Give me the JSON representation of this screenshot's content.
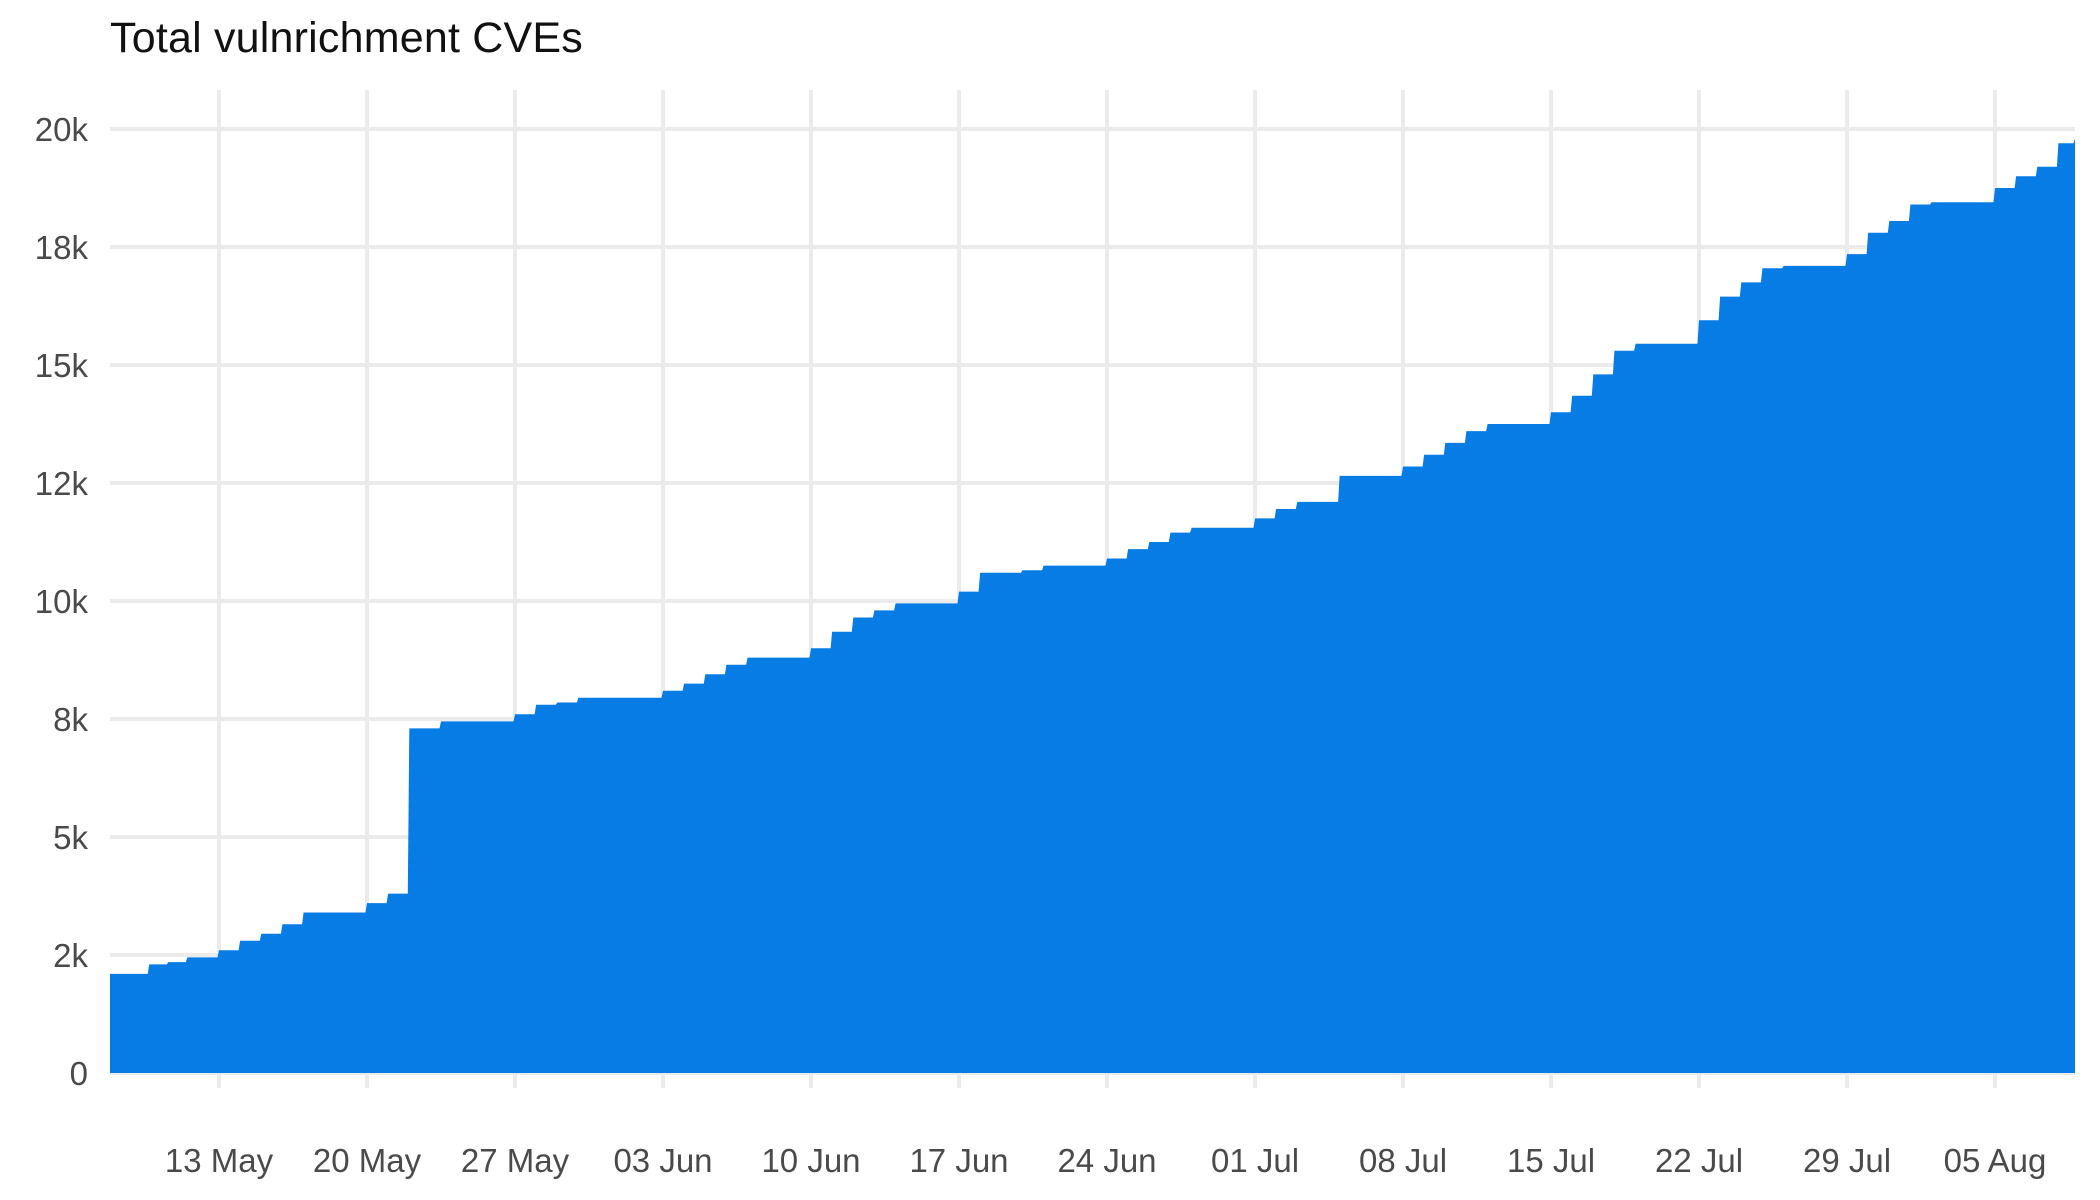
{
  "chart_data": {
    "type": "area",
    "title": "Total vulnrichment CVEs",
    "xlabel": "",
    "ylabel": "",
    "ylim": [
      0,
      20000
    ],
    "grid": true,
    "legend": "none",
    "color": "#087ce5",
    "y_ticks": [
      {
        "value": 0,
        "label": "0"
      },
      {
        "value": 2500,
        "label": "2k"
      },
      {
        "value": 5000,
        "label": "5k"
      },
      {
        "value": 7500,
        "label": "8k"
      },
      {
        "value": 10000,
        "label": "10k"
      },
      {
        "value": 12500,
        "label": "12k"
      },
      {
        "value": 15000,
        "label": "15k"
      },
      {
        "value": 17500,
        "label": "18k"
      },
      {
        "value": 20000,
        "label": "20k"
      }
    ],
    "x_ticks": [
      "13 May",
      "20 May",
      "27 May",
      "03 Jun",
      "10 Jun",
      "17 Jun",
      "24 Jun",
      "01 Jul",
      "08 Jul",
      "15 Jul",
      "22 Jul",
      "29 Jul",
      "05 Aug"
    ],
    "x_start_day_offset": -5.16,
    "x_end_day_offset": 87.8,
    "series": [
      {
        "name": "Total vulnrichment CVEs",
        "step": true,
        "points": [
          {
            "d": -5.16,
            "v": 2100
          },
          {
            "d": -4.4,
            "v": 2100
          },
          {
            "d": -3.3,
            "v": 2300
          },
          {
            "d": -2.4,
            "v": 2350
          },
          {
            "d": -1.5,
            "v": 2450
          },
          {
            "d": 0,
            "v": 2600
          },
          {
            "d": 1,
            "v": 2800
          },
          {
            "d": 2,
            "v": 2950
          },
          {
            "d": 3,
            "v": 3150
          },
          {
            "d": 4,
            "v": 3400
          },
          {
            "d": 5,
            "v": 3400
          },
          {
            "d": 7,
            "v": 3600
          },
          {
            "d": 8,
            "v": 3800
          },
          {
            "d": 9,
            "v": 7300
          },
          {
            "d": 10.5,
            "v": 7450
          },
          {
            "d": 12.5,
            "v": 7450
          },
          {
            "d": 14,
            "v": 7600
          },
          {
            "d": 15,
            "v": 7800
          },
          {
            "d": 16,
            "v": 7850
          },
          {
            "d": 17,
            "v": 7950
          },
          {
            "d": 21,
            "v": 8100
          },
          {
            "d": 22,
            "v": 8250
          },
          {
            "d": 23,
            "v": 8450
          },
          {
            "d": 24,
            "v": 8650
          },
          {
            "d": 25,
            "v": 8800
          },
          {
            "d": 28,
            "v": 9000
          },
          {
            "d": 29,
            "v": 9350
          },
          {
            "d": 30,
            "v": 9650
          },
          {
            "d": 31,
            "v": 9800
          },
          {
            "d": 32,
            "v": 9950
          },
          {
            "d": 35,
            "v": 10200
          },
          {
            "d": 36,
            "v": 10600
          },
          {
            "d": 38,
            "v": 10650
          },
          {
            "d": 39,
            "v": 10750
          },
          {
            "d": 42,
            "v": 10900
          },
          {
            "d": 43,
            "v": 11100
          },
          {
            "d": 44,
            "v": 11250
          },
          {
            "d": 45,
            "v": 11450
          },
          {
            "d": 46,
            "v": 11550
          },
          {
            "d": 49,
            "v": 11750
          },
          {
            "d": 50,
            "v": 11950
          },
          {
            "d": 51,
            "v": 12100
          },
          {
            "d": 53,
            "v": 12650
          },
          {
            "d": 54,
            "v": 12650
          },
          {
            "d": 56,
            "v": 12850
          },
          {
            "d": 57,
            "v": 13100
          },
          {
            "d": 58,
            "v": 13350
          },
          {
            "d": 59,
            "v": 13600
          },
          {
            "d": 60,
            "v": 13750
          },
          {
            "d": 63,
            "v": 14000
          },
          {
            "d": 64,
            "v": 14350
          },
          {
            "d": 65,
            "v": 14800
          },
          {
            "d": 66,
            "v": 15300
          },
          {
            "d": 67,
            "v": 15450
          },
          {
            "d": 70,
            "v": 15950
          },
          {
            "d": 71,
            "v": 16450
          },
          {
            "d": 72,
            "v": 16750
          },
          {
            "d": 73,
            "v": 17050
          },
          {
            "d": 74,
            "v": 17100
          },
          {
            "d": 77,
            "v": 17350
          },
          {
            "d": 78,
            "v": 17800
          },
          {
            "d": 79,
            "v": 18050
          },
          {
            "d": 80,
            "v": 18400
          },
          {
            "d": 81,
            "v": 18450
          },
          {
            "d": 84,
            "v": 18750
          },
          {
            "d": 85,
            "v": 19000
          },
          {
            "d": 86,
            "v": 19200
          },
          {
            "d": 87,
            "v": 19700
          },
          {
            "d": 87.8,
            "v": 19800
          }
        ]
      }
    ]
  }
}
